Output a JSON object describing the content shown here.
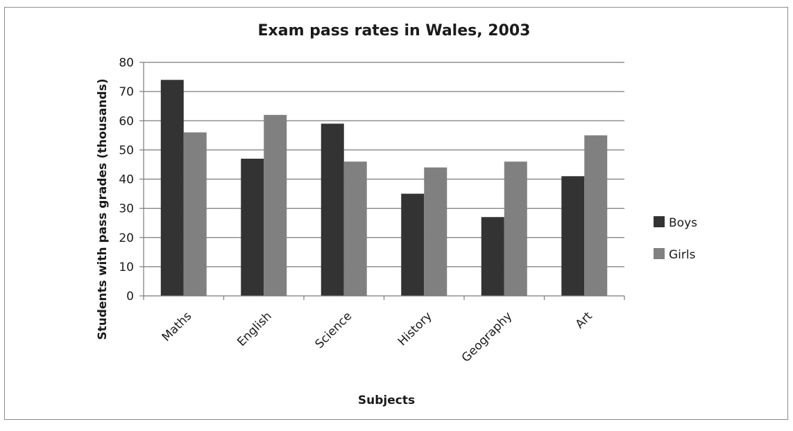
{
  "chart_data": {
    "type": "bar",
    "title": "Exam pass rates in Wales, 2003",
    "xlabel": "Subjects",
    "ylabel": "Students with pass grades (thousands)",
    "categories": [
      "Maths",
      "English",
      "Science",
      "History",
      "Geography",
      "Art"
    ],
    "series": [
      {
        "name": "Boys",
        "color": "#333333",
        "values": [
          74,
          47,
          59,
          35,
          27,
          41
        ]
      },
      {
        "name": "Girls",
        "color": "#808080",
        "values": [
          56,
          62,
          46,
          44,
          46,
          55
        ]
      }
    ],
    "ylim": [
      0,
      80
    ],
    "yticks": [
      0,
      10,
      20,
      30,
      40,
      50,
      60,
      70,
      80
    ],
    "grid": true,
    "legend_position": "right"
  }
}
